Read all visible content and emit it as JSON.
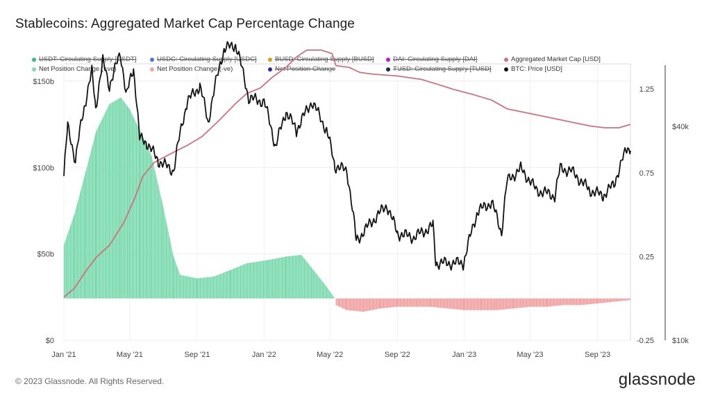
{
  "title": "Stablecoins: Aggregated Market Cap Percentage Change",
  "footer": "© 2023 Glassnode. All Rights Reserved.",
  "brand": "glassnode",
  "legend": [
    {
      "label": "USDT: Circulating Supply [USDT]",
      "color": "#2ec27e",
      "enabled": false
    },
    {
      "label": "USDC: Circulating Supply [USDC]",
      "color": "#4a78d8",
      "enabled": false
    },
    {
      "label": "BUSD: Circulating Supply [BUSD]",
      "color": "#d4a017",
      "enabled": false
    },
    {
      "label": "DAI: Circulating Supply [DAI]",
      "color": "#c218c8",
      "enabled": false
    },
    {
      "label": "Aggregated Market Cap [USD]",
      "color": "#d0707e",
      "enabled": true
    },
    {
      "label": "Net Position Change (+ve)",
      "color": "#7fdcb2",
      "enabled": true
    },
    {
      "label": "Net Position Change (-ve)",
      "color": "#f2a3a3",
      "enabled": true
    },
    {
      "label": "Net Position Change",
      "color": "#2a2aa0",
      "enabled": false
    },
    {
      "label": "TUSD: Circulating Supply [TUSD]",
      "color": "#1b2a55",
      "enabled": false
    },
    {
      "label": "BTC: Price [USD]",
      "color": "#111111",
      "enabled": true
    }
  ],
  "chart_data": {
    "type": "line",
    "x_ticks": [
      "Jan '21",
      "May '21",
      "Sep '21",
      "Jan '22",
      "May '22",
      "Sep '22",
      "Jan '23",
      "May '23",
      "Sep '23"
    ],
    "x_range": [
      "2021-01-01",
      "2023-10-31"
    ],
    "grid": true,
    "axes": {
      "left": {
        "ticks": [
          "$0",
          "$50b",
          "$100b",
          "$150b"
        ],
        "range": [
          0,
          160
        ]
      },
      "right1": {
        "ticks": [
          "-0.25",
          "0.25",
          "0.75",
          "1.25"
        ],
        "range": [
          -0.25,
          1.4
        ]
      },
      "right2": {
        "ticks": [
          "$10k",
          "$40k"
        ],
        "log": true,
        "range": [
          10000,
          60000
        ]
      }
    },
    "series": [
      {
        "name": "Aggregated Market Cap [USD]",
        "axis": "left",
        "color": "#d0707e",
        "points": [
          [
            "2021-01-01",
            25
          ],
          [
            "2021-01-20",
            30
          ],
          [
            "2021-02-10",
            40
          ],
          [
            "2021-03-01",
            48
          ],
          [
            "2021-03-25",
            55
          ],
          [
            "2021-04-20",
            68
          ],
          [
            "2021-05-10",
            82
          ],
          [
            "2021-05-25",
            95
          ],
          [
            "2021-06-15",
            103
          ],
          [
            "2021-07-15",
            108
          ],
          [
            "2021-08-15",
            113
          ],
          [
            "2021-09-10",
            118
          ],
          [
            "2021-10-10",
            127
          ],
          [
            "2021-11-10",
            137
          ],
          [
            "2021-12-01",
            143
          ],
          [
            "2021-12-25",
            146
          ],
          [
            "2022-01-15",
            152
          ],
          [
            "2022-02-10",
            158
          ],
          [
            "2022-03-01",
            164
          ],
          [
            "2022-03-20",
            168
          ],
          [
            "2022-04-15",
            168
          ],
          [
            "2022-05-05",
            166
          ],
          [
            "2022-05-12",
            159
          ],
          [
            "2022-06-05",
            158
          ],
          [
            "2022-06-25",
            155
          ],
          [
            "2022-07-20",
            154
          ],
          [
            "2022-09-01",
            153
          ],
          [
            "2022-10-15",
            151
          ],
          [
            "2022-11-15",
            148
          ],
          [
            "2022-12-15",
            145
          ],
          [
            "2023-01-20",
            142
          ],
          [
            "2023-02-20",
            139
          ],
          [
            "2023-03-20",
            134
          ],
          [
            "2023-04-20",
            132
          ],
          [
            "2023-05-20",
            130
          ],
          [
            "2023-06-20",
            128
          ],
          [
            "2023-07-20",
            126
          ],
          [
            "2023-08-20",
            124
          ],
          [
            "2023-09-15",
            123
          ],
          [
            "2023-10-10",
            123
          ],
          [
            "2023-10-31",
            125
          ]
        ]
      },
      {
        "name": "BTC: Price [USD]",
        "axis": "right2",
        "color": "#111111",
        "points": [
          [
            "2021-01-01",
            29000
          ],
          [
            "2021-01-08",
            40000
          ],
          [
            "2021-01-22",
            32000
          ],
          [
            "2021-02-08",
            46000
          ],
          [
            "2021-02-21",
            57000
          ],
          [
            "2021-02-28",
            45000
          ],
          [
            "2021-03-13",
            61000
          ],
          [
            "2021-03-25",
            52000
          ],
          [
            "2021-04-14",
            64000
          ],
          [
            "2021-04-25",
            49000
          ],
          [
            "2021-05-08",
            58000
          ],
          [
            "2021-05-19",
            37000
          ],
          [
            "2021-06-01",
            36000
          ],
          [
            "2021-06-22",
            32000
          ],
          [
            "2021-07-20",
            30000
          ],
          [
            "2021-08-14",
            47000
          ],
          [
            "2021-09-06",
            52000
          ],
          [
            "2021-09-21",
            41000
          ],
          [
            "2021-10-20",
            66000
          ],
          [
            "2021-11-10",
            68000
          ],
          [
            "2021-12-04",
            48000
          ],
          [
            "2022-01-01",
            47000
          ],
          [
            "2022-01-22",
            35000
          ],
          [
            "2022-02-10",
            44000
          ],
          [
            "2022-03-01",
            39000
          ],
          [
            "2022-03-29",
            47000
          ],
          [
            "2022-04-25",
            39000
          ],
          [
            "2022-05-10",
            31000
          ],
          [
            "2022-06-01",
            30000
          ],
          [
            "2022-06-18",
            19000
          ],
          [
            "2022-07-10",
            21000
          ],
          [
            "2022-08-13",
            24000
          ],
          [
            "2022-09-01",
            20000
          ],
          [
            "2022-10-01",
            19500
          ],
          [
            "2022-11-05",
            21000
          ],
          [
            "2022-11-10",
            16500
          ],
          [
            "2022-12-31",
            16500
          ],
          [
            "2023-01-25",
            23000
          ],
          [
            "2023-02-20",
            24500
          ],
          [
            "2023-03-10",
            20000
          ],
          [
            "2023-03-20",
            28000
          ],
          [
            "2023-04-14",
            30500
          ],
          [
            "2023-05-12",
            26500
          ],
          [
            "2023-06-15",
            25500
          ],
          [
            "2023-06-25",
            30500
          ],
          [
            "2023-07-15",
            30000
          ],
          [
            "2023-08-17",
            26500
          ],
          [
            "2023-09-11",
            25500
          ],
          [
            "2023-10-01",
            27500
          ],
          [
            "2023-10-24",
            34500
          ],
          [
            "2023-10-31",
            35000
          ]
        ]
      },
      {
        "name": "Net Position Change (+ve)",
        "axis": "right1",
        "color": "#7fdcb2",
        "type": "area",
        "points": [
          [
            "2021-01-01",
            0.32
          ],
          [
            "2021-01-20",
            0.5
          ],
          [
            "2021-02-10",
            0.76
          ],
          [
            "2021-03-01",
            1.0
          ],
          [
            "2021-03-25",
            1.16
          ],
          [
            "2021-04-15",
            1.2
          ],
          [
            "2021-05-01",
            1.13
          ],
          [
            "2021-05-20",
            1.0
          ],
          [
            "2021-06-10",
            0.85
          ],
          [
            "2021-07-01",
            0.55
          ],
          [
            "2021-07-20",
            0.25
          ],
          [
            "2021-08-01",
            0.14
          ],
          [
            "2021-09-01",
            0.12
          ],
          [
            "2021-10-01",
            0.13
          ],
          [
            "2021-11-01",
            0.17
          ],
          [
            "2021-12-01",
            0.21
          ],
          [
            "2022-01-10",
            0.23
          ],
          [
            "2022-02-10",
            0.25
          ],
          [
            "2022-03-10",
            0.26
          ],
          [
            "2022-04-01",
            0.17
          ],
          [
            "2022-04-25",
            0.07
          ],
          [
            "2022-05-10",
            0.0
          ]
        ]
      },
      {
        "name": "Net Position Change (-ve)",
        "axis": "right1",
        "color": "#f2a3a3",
        "type": "area",
        "points": [
          [
            "2022-05-12",
            -0.04
          ],
          [
            "2022-06-01",
            -0.07
          ],
          [
            "2022-07-01",
            -0.08
          ],
          [
            "2022-08-01",
            -0.06
          ],
          [
            "2022-09-01",
            -0.05
          ],
          [
            "2022-10-01",
            -0.05
          ],
          [
            "2022-11-01",
            -0.05
          ],
          [
            "2022-12-01",
            -0.06
          ],
          [
            "2023-01-01",
            -0.07
          ],
          [
            "2023-02-01",
            -0.07
          ],
          [
            "2023-03-01",
            -0.07
          ],
          [
            "2023-04-01",
            -0.06
          ],
          [
            "2023-05-01",
            -0.05
          ],
          [
            "2023-06-01",
            -0.05
          ],
          [
            "2023-07-01",
            -0.04
          ],
          [
            "2023-08-01",
            -0.04
          ],
          [
            "2023-09-01",
            -0.03
          ],
          [
            "2023-10-01",
            -0.02
          ],
          [
            "2023-10-31",
            -0.01
          ]
        ]
      }
    ]
  }
}
